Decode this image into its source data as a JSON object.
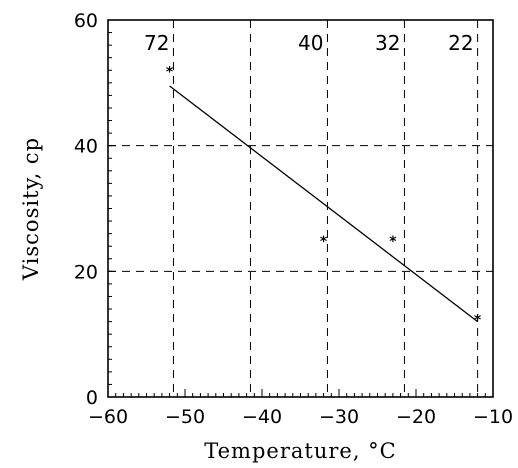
{
  "chart_data": {
    "type": "scatter",
    "title": "",
    "xlabel": "Temperature, °C",
    "ylabel": "Viscosity, cp",
    "xlim": [
      -60,
      -10
    ],
    "ylim": [
      0,
      60
    ],
    "xticks": [
      "−60",
      "−50",
      "−40",
      "−30",
      "−20",
      "−10"
    ],
    "yticks": [
      "0",
      "20",
      "40",
      "60"
    ],
    "grid": true,
    "points": [
      {
        "x": -52,
        "y": 52
      },
      {
        "x": -32,
        "y": 25
      },
      {
        "x": -23,
        "y": 25
      },
      {
        "x": -12,
        "y": 12.5
      }
    ],
    "fit_line": {
      "x": [
        -52,
        -12
      ],
      "y": [
        49.5,
        12
      ]
    },
    "vertical_markers": [
      {
        "x": -51.5,
        "label": "72"
      },
      {
        "x": -41.5,
        "label": ""
      },
      {
        "x": -31.5,
        "label": "40"
      },
      {
        "x": -21.5,
        "label": "32"
      },
      {
        "x": -12,
        "label": "22"
      }
    ],
    "horizontal_gridlines": [
      20,
      40
    ]
  }
}
